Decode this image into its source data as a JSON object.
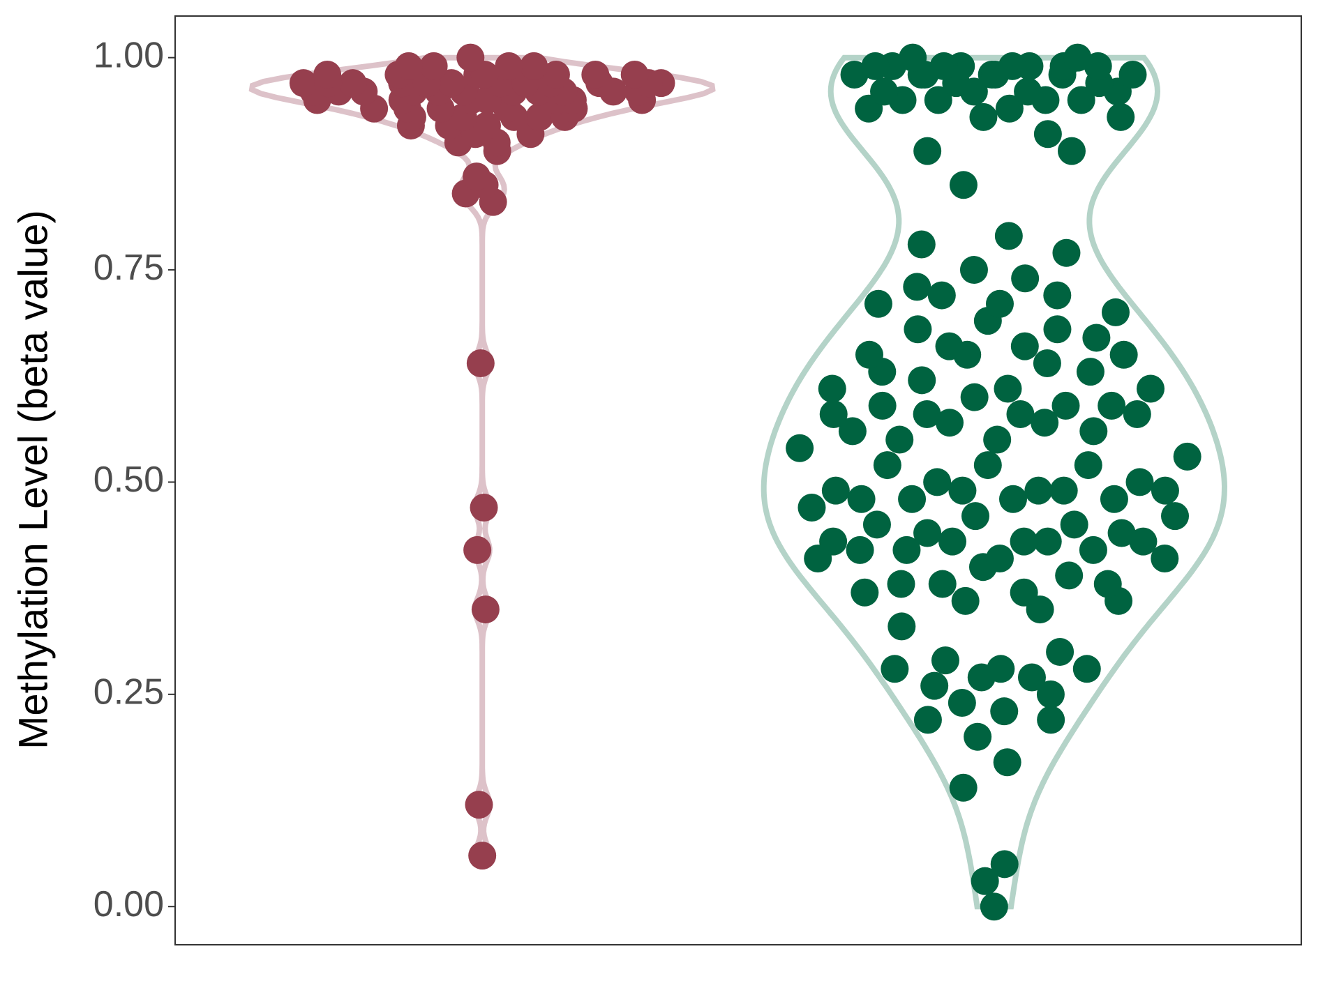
{
  "chart_data": {
    "type": "violin",
    "y_label": "Methylation Level (beta value)",
    "categories": [
      null,
      null
    ],
    "ylim": [
      -0.045,
      1.049
    ],
    "yticks": [
      {
        "value": 0,
        "label": "0.00"
      },
      {
        "value": 0.25,
        "label": "0.25"
      },
      {
        "value": 0.5,
        "label": "0.50"
      },
      {
        "value": 0.75,
        "label": "0.75"
      },
      {
        "value": 1,
        "label": "1.00"
      }
    ],
    "grid": false,
    "series": [
      {
        "color": "#963f4e",
        "violin_color": "#ddc2c9",
        "values": [
          0.97,
          0.97,
          0.98,
          0.96,
          0.98,
          0.96,
          0.97,
          0.99,
          0.95,
          0.96,
          0.97,
          0.98,
          0.99,
          1.0,
          0.99,
          0.98,
          0.97,
          0.96,
          0.95,
          0.94,
          0.93,
          0.92,
          0.97,
          0.96,
          0.95,
          0.94,
          0.93,
          0.92,
          0.91,
          0.9,
          0.9,
          0.89,
          0.91,
          0.93,
          0.95,
          0.96,
          0.97,
          0.98,
          0.99,
          0.96,
          0.95,
          0.94,
          0.97,
          0.96,
          0.98,
          0.97,
          0.95,
          0.94,
          0.93,
          0.92,
          0.96,
          0.97,
          0.98,
          0.96,
          0.95,
          0.97,
          0.94,
          0.93,
          0.96,
          0.97,
          0.86,
          0.85,
          0.84,
          0.83,
          0.64,
          0.47,
          0.42,
          0.35,
          0.12,
          0.06
        ]
      },
      {
        "color": "#006340",
        "violin_color": "#b4d3c8",
        "values": [
          0.98,
          0.97,
          0.95,
          0.99,
          0.96,
          0.99,
          0.98,
          1.0,
          0.98,
          0.95,
          0.99,
          0.93,
          0.96,
          0.98,
          0.94,
          0.94,
          0.99,
          0.97,
          0.99,
          0.96,
          0.99,
          0.98,
          0.93,
          0.91,
          0.95,
          0.99,
          1.0,
          0.98,
          0.96,
          0.99,
          0.98,
          0.95,
          0.89,
          0.89,
          0.85,
          0.78,
          0.79,
          0.77,
          0.75,
          0.74,
          0.73,
          0.71,
          0.72,
          0.72,
          0.71,
          0.7,
          0.69,
          0.68,
          0.68,
          0.67,
          0.66,
          0.66,
          0.65,
          0.65,
          0.65,
          0.64,
          0.63,
          0.63,
          0.62,
          0.61,
          0.61,
          0.61,
          0.6,
          0.59,
          0.59,
          0.59,
          0.58,
          0.58,
          0.58,
          0.58,
          0.57,
          0.57,
          0.56,
          0.56,
          0.55,
          0.55,
          0.54,
          0.53,
          0.52,
          0.52,
          0.52,
          0.5,
          0.5,
          0.49,
          0.49,
          0.49,
          0.49,
          0.49,
          0.48,
          0.48,
          0.48,
          0.48,
          0.47,
          0.46,
          0.46,
          0.45,
          0.45,
          0.44,
          0.44,
          0.43,
          0.43,
          0.43,
          0.43,
          0.43,
          0.42,
          0.42,
          0.42,
          0.41,
          0.41,
          0.41,
          0.4,
          0.39,
          0.38,
          0.38,
          0.38,
          0.37,
          0.37,
          0.36,
          0.36,
          0.35,
          0.33,
          0.3,
          0.29,
          0.28,
          0.28,
          0.28,
          0.27,
          0.27,
          0.26,
          0.25,
          0.24,
          0.23,
          0.22,
          0.22,
          0.2,
          0.17,
          0.14,
          0.05,
          0.03,
          0.0
        ]
      }
    ]
  }
}
